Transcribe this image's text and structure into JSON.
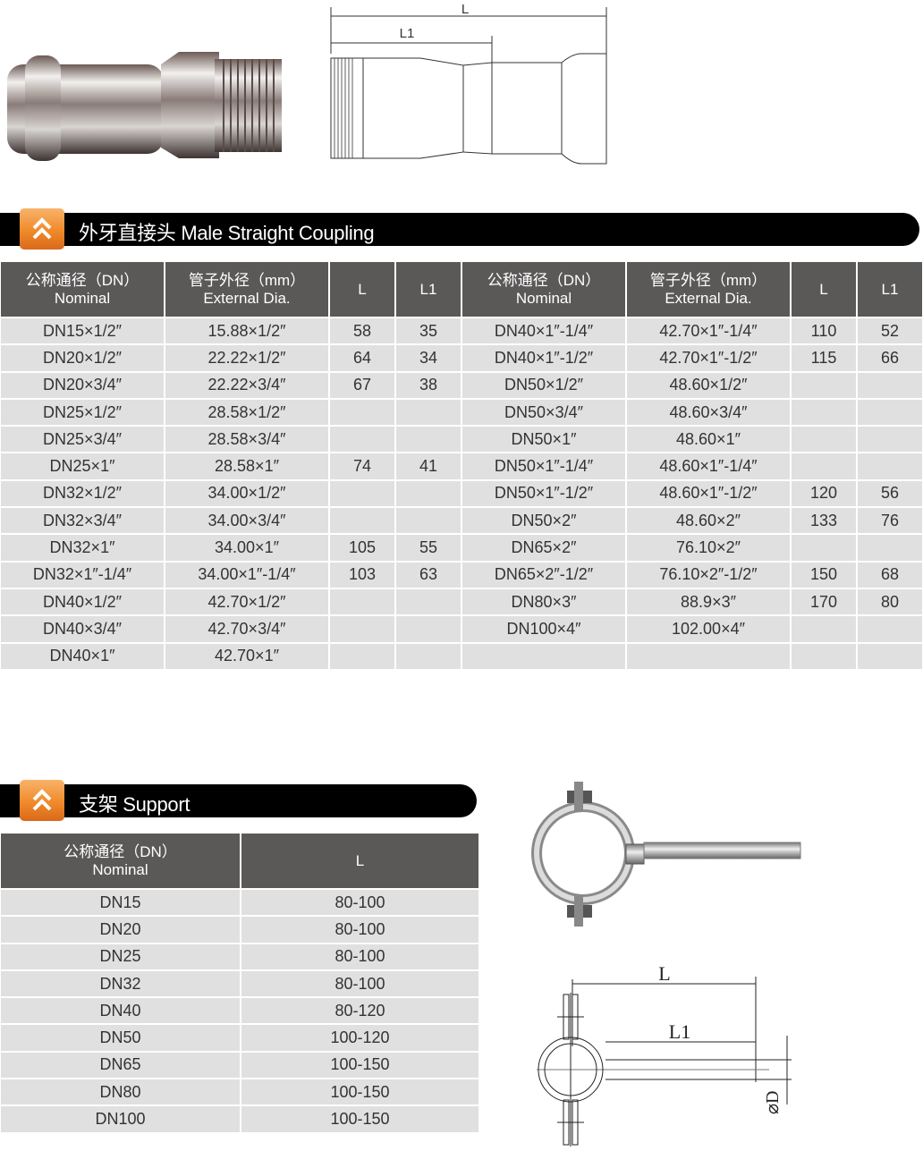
{
  "coupling": {
    "diagram_labels": {
      "L": "L",
      "L1": "L1"
    },
    "banner_title": "外牙直接头 Male Straight Coupling",
    "headers": [
      {
        "cn": "公称通径（DN）",
        "en": "Nominal"
      },
      {
        "cn": "管子外径（mm）",
        "en": "External Dia."
      },
      {
        "cn": "L",
        "en": ""
      },
      {
        "cn": "L1",
        "en": ""
      },
      {
        "cn": "公称通径（DN）",
        "en": "Nominal"
      },
      {
        "cn": "管子外径（mm）",
        "en": "External Dia."
      },
      {
        "cn": "L",
        "en": ""
      },
      {
        "cn": "L1",
        "en": ""
      }
    ],
    "rows": [
      [
        "DN15×1/2″",
        "15.88×1/2″",
        "58",
        "35",
        "DN40×1″-1/4″",
        "42.70×1″-1/4″",
        "110",
        "52"
      ],
      [
        "DN20×1/2″",
        "22.22×1/2″",
        "64",
        "34",
        "DN40×1″-1/2″",
        "42.70×1″-1/2″",
        "115",
        "66"
      ],
      [
        "DN20×3/4″",
        "22.22×3/4″",
        "67",
        "38",
        "DN50×1/2″",
        "48.60×1/2″",
        "",
        ""
      ],
      [
        "DN25×1/2″",
        "28.58×1/2″",
        "",
        "",
        "DN50×3/4″",
        "48.60×3/4″",
        "",
        ""
      ],
      [
        "DN25×3/4″",
        "28.58×3/4″",
        "",
        "",
        "DN50×1″",
        "48.60×1″",
        "",
        ""
      ],
      [
        "DN25×1″",
        "28.58×1″",
        "74",
        "41",
        "DN50×1″-1/4″",
        "48.60×1″-1/4″",
        "",
        ""
      ],
      [
        "DN32×1/2″",
        "34.00×1/2″",
        "",
        "",
        "DN50×1″-1/2″",
        "48.60×1″-1/2″",
        "120",
        "56"
      ],
      [
        "DN32×3/4″",
        "34.00×3/4″",
        "",
        "",
        "DN50×2″",
        "48.60×2″",
        "133",
        "76"
      ],
      [
        "DN32×1″",
        "34.00×1″",
        "105",
        "55",
        "DN65×2″",
        "76.10×2″",
        "",
        ""
      ],
      [
        "DN32×1″-1/4″",
        "34.00×1″-1/4″",
        "103",
        "63",
        "DN65×2″-1/2″",
        "76.10×2″-1/2″",
        "150",
        "68"
      ],
      [
        "DN40×1/2″",
        "42.70×1/2″",
        "",
        "",
        "DN80×3″",
        "88.9×3″",
        "170",
        "80"
      ],
      [
        "DN40×3/4″",
        "42.70×3/4″",
        "",
        "",
        "DN100×4″",
        "102.00×4″",
        "",
        ""
      ],
      [
        "DN40×1″",
        "42.70×1″",
        "",
        "",
        "",
        "",
        "",
        ""
      ]
    ]
  },
  "support": {
    "banner_title": "支架 Support",
    "headers": [
      {
        "cn": "公称通径（DN）",
        "en": "Nominal"
      },
      {
        "cn": "L",
        "en": ""
      }
    ],
    "rows": [
      [
        "DN15",
        "80-100"
      ],
      [
        "DN20",
        "80-100"
      ],
      [
        "DN25",
        "80-100"
      ],
      [
        "DN32",
        "80-100"
      ],
      [
        "DN40",
        "80-120"
      ],
      [
        "DN50",
        "100-120"
      ],
      [
        "DN65",
        "100-150"
      ],
      [
        "DN80",
        "100-150"
      ],
      [
        "DN100",
        "100-150"
      ]
    ],
    "diagram_labels": {
      "L": "L",
      "L1": "L1",
      "D": "⌀D"
    }
  },
  "colors": {
    "header_bg": "#5b5858",
    "cell_bg": "#e0e0e0",
    "banner_bg": "#000000",
    "badge_orange": "#f08a2a"
  },
  "icons": {
    "banner_badge": "double-chevron-up-icon"
  }
}
